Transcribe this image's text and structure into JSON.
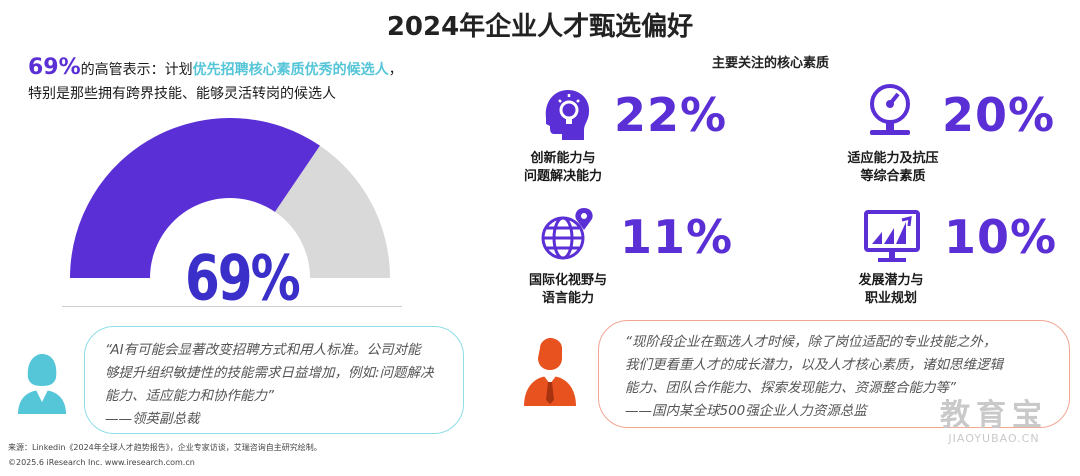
{
  "title": "2024年企业人才甄选偏好",
  "left": {
    "headline_pct": "69%",
    "headline_pre": "的高管表示：计划",
    "headline_highlight": "优先招聘核心素质优秀的候选人",
    "headline_post": "，",
    "headline_line2": "特别是那些拥有跨界技能、能够灵活转岗的候选人",
    "gauge": {
      "value": 69,
      "label": "69%",
      "fill_color": "#5b2fd6",
      "rest_color": "#d9d9d9"
    },
    "quote_line1": "“AI有可能会显著改变招聘方式和用人标准。公司对能",
    "quote_line2": "够提升组织敏捷性的技能需求日益增加，例如:问题解决",
    "quote_line3": "能力、适应能力和协作能力”",
    "quote_author": "——领英副总裁"
  },
  "right": {
    "heading": "主要关注的核心素质",
    "qualities": [
      {
        "icon": "head-lightbulb-icon",
        "value": "22%",
        "label1": "创新能力与",
        "label2": "问题解决能力"
      },
      {
        "icon": "pressure-gauge-icon",
        "value": "20%",
        "label1": "适应能力及抗压",
        "label2": "等综合素质"
      },
      {
        "icon": "globe-location-icon",
        "value": "11%",
        "label1": "国际化视野与",
        "label2": "语言能力"
      },
      {
        "icon": "growth-chart-icon",
        "value": "10%",
        "label1": "发展潜力与",
        "label2": "职业规划"
      }
    ],
    "quote_line1": "“现阶段企业在甄选人才时候，除了岗位适配的专业技能之外，",
    "quote_line2": "我们更看重人才的成长潜力，以及人才核心素质，诸如思维逻辑",
    "quote_line3": "能力、团队合作能力、探索发现能力、资源整合能力等”",
    "quote_author": "——国内某全球500强企业人力资源总监"
  },
  "footer": {
    "source": "来源：Linkedin《2024年全球人才趋势报告》，企业专家访谈，艾瑞咨询自主研究绘制。",
    "copyright": "©2025.6 iResearch Inc.                www.iresearch.com.cn"
  },
  "watermark": {
    "cn": "教育宝",
    "en": "JIAOYUBAO.CN"
  },
  "colors": {
    "accent": "#5b2fd6",
    "teal": "#55c5d8",
    "orange": "#e8521f"
  }
}
